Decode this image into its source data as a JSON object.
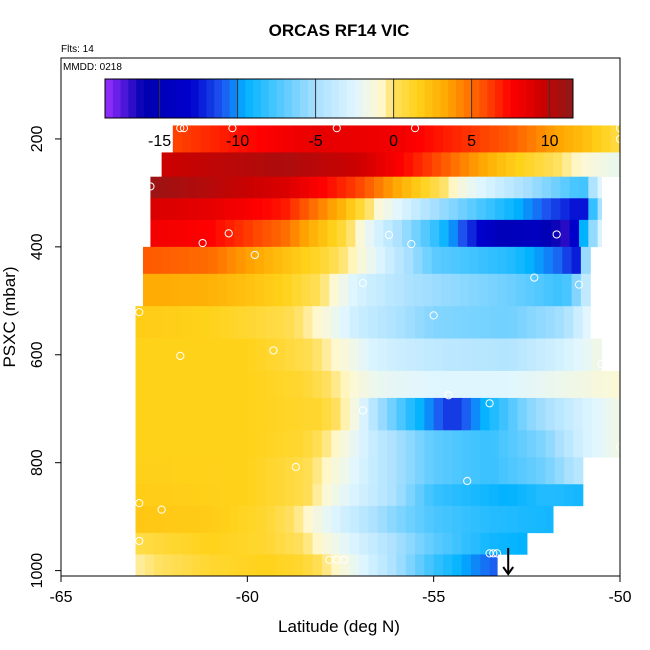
{
  "chart_data": {
    "type": "heatmap",
    "title": "ORCAS RF14 VIC",
    "flights_label": "Flts: 14",
    "date_label": "MMDD: 0218",
    "xlabel": "Latitude (deg N)",
    "ylabel": "PSXC (mbar)",
    "xlim": [
      -65,
      -50
    ],
    "ylim": [
      1010,
      50
    ],
    "x_ticks": [
      -65,
      -60,
      -55,
      -50
    ],
    "x_tick_labels": [
      "-65",
      "-60",
      "-55",
      "-50"
    ],
    "y_ticks": [
      200,
      400,
      600,
      800,
      1000
    ],
    "y_tick_labels": [
      "200",
      "400",
      "600",
      "800",
      "1000"
    ],
    "colorbar": {
      "range": [
        -18.5,
        11.5
      ],
      "ticks": [
        -15,
        -10,
        -5,
        0,
        5,
        10
      ],
      "tick_labels": [
        "-15",
        "-10",
        "-5",
        "0",
        "5",
        "10"
      ],
      "stops": [
        {
          "v": -18.5,
          "c": "#9b30ff"
        },
        {
          "v": -17.5,
          "c": "#5a1be0"
        },
        {
          "v": -16,
          "c": "#0000b0"
        },
        {
          "v": -13,
          "c": "#0000cd"
        },
        {
          "v": -11,
          "c": "#1e56f0"
        },
        {
          "v": -9.5,
          "c": "#00b2ff"
        },
        {
          "v": -7,
          "c": "#5ecbff"
        },
        {
          "v": -5,
          "c": "#a8e0ff"
        },
        {
          "v": -2.5,
          "c": "#e0f6ff"
        },
        {
          "v": -0.8,
          "c": "#fff8cf"
        },
        {
          "v": 0,
          "c": "#ffe060"
        },
        {
          "v": 1.5,
          "c": "#ffd21a"
        },
        {
          "v": 3.5,
          "c": "#ffa500"
        },
        {
          "v": 6,
          "c": "#ff4500"
        },
        {
          "v": 7.5,
          "c": "#ff0000"
        },
        {
          "v": 9.5,
          "c": "#cd0000"
        },
        {
          "v": 11.5,
          "c": "#8b1a1a"
        }
      ]
    },
    "layers": [
      {
        "p_top": 175,
        "p_bot": 225,
        "x_start": -62.0,
        "x_end": -50.0,
        "profile": [
          [
            -62,
            6
          ],
          [
            -60.5,
            7
          ],
          [
            -58,
            8.5
          ],
          [
            -56,
            8
          ],
          [
            -53,
            5.5
          ],
          [
            -51,
            2.5
          ],
          [
            -50,
            0.5
          ]
        ]
      },
      {
        "p_top": 225,
        "p_bot": 270,
        "x_start": -62.3,
        "x_end": -50.0,
        "profile": [
          [
            -62.3,
            9.5
          ],
          [
            -59,
            10.5
          ],
          [
            -57,
            9.5
          ],
          [
            -55,
            6
          ],
          [
            -53,
            2
          ],
          [
            -51,
            -1
          ],
          [
            -50,
            -2
          ]
        ]
      },
      {
        "p_top": 270,
        "p_bot": 310,
        "x_start": -62.6,
        "x_end": -50.5,
        "profile": [
          [
            -62.6,
            11
          ],
          [
            -61,
            10.2
          ],
          [
            -59,
            9
          ],
          [
            -57,
            6
          ],
          [
            -55.5,
            2
          ],
          [
            -54,
            -2
          ],
          [
            -52,
            -6
          ],
          [
            -51,
            -8
          ],
          [
            -50.5,
            -2
          ]
        ]
      },
      {
        "p_top": 310,
        "p_bot": 350,
        "x_start": -62.6,
        "x_end": -50.5,
        "profile": [
          [
            -62.6,
            9
          ],
          [
            -61,
            8.5
          ],
          [
            -59,
            7
          ],
          [
            -57.5,
            3
          ],
          [
            -56.5,
            -1
          ],
          [
            -55,
            -5
          ],
          [
            -53,
            -9
          ],
          [
            -51.5,
            -12
          ],
          [
            -51,
            -13
          ],
          [
            -50.5,
            -4
          ]
        ]
      },
      {
        "p_top": 350,
        "p_bot": 400,
        "x_start": -62.6,
        "x_end": -50.5,
        "profile": [
          [
            -62.6,
            8
          ],
          [
            -61,
            7.5
          ],
          [
            -59,
            5
          ],
          [
            -57.5,
            1
          ],
          [
            -56.5,
            -3
          ],
          [
            -55,
            -8
          ],
          [
            -54,
            -12
          ],
          [
            -53.2,
            -15
          ],
          [
            -52.2,
            -14.5
          ],
          [
            -51.5,
            -17
          ],
          [
            -51.2,
            -13
          ],
          [
            -50.5,
            -2
          ]
        ]
      },
      {
        "p_top": 400,
        "p_bot": 450,
        "x_start": -62.8,
        "x_end": -50.8,
        "profile": [
          [
            -62.8,
            5.5
          ],
          [
            -61,
            5
          ],
          [
            -59.5,
            3
          ],
          [
            -58,
            1
          ],
          [
            -57,
            -1
          ],
          [
            -56,
            -4
          ],
          [
            -55,
            -7
          ],
          [
            -53,
            -8.5
          ],
          [
            -51.5,
            -11
          ],
          [
            -51.2,
            -13
          ],
          [
            -50.8,
            -2
          ]
        ]
      },
      {
        "p_top": 450,
        "p_bot": 510,
        "x_start": -62.8,
        "x_end": -50.8,
        "profile": [
          [
            -62.8,
            3.2
          ],
          [
            -61,
            3
          ],
          [
            -59,
            1.5
          ],
          [
            -58,
            0
          ],
          [
            -57,
            -3
          ],
          [
            -55.5,
            -5
          ],
          [
            -53,
            -6.5
          ],
          [
            -51.5,
            -8
          ],
          [
            -51,
            -5
          ],
          [
            -50.8,
            -2
          ]
        ]
      },
      {
        "p_top": 510,
        "p_bot": 570,
        "x_start": -63.0,
        "x_end": -50.8,
        "profile": [
          [
            -63,
            1.8
          ],
          [
            -61,
            1.5
          ],
          [
            -59,
            0.5
          ],
          [
            -58,
            -1
          ],
          [
            -57,
            -3.5
          ],
          [
            -55,
            -6
          ],
          [
            -53,
            -6.5
          ],
          [
            -51.5,
            -5
          ],
          [
            -50.8,
            -2
          ]
        ]
      },
      {
        "p_top": 570,
        "p_bot": 630,
        "x_start": -63.0,
        "x_end": -50.5,
        "profile": [
          [
            -63,
            1.5
          ],
          [
            -60,
            1.5
          ],
          [
            -58.5,
            0.5
          ],
          [
            -57.5,
            -1
          ],
          [
            -56.5,
            -3
          ],
          [
            -55,
            -4
          ],
          [
            -53,
            -4.5
          ],
          [
            -51.5,
            -3
          ],
          [
            -50.5,
            -1.5
          ]
        ]
      },
      {
        "p_top": 630,
        "p_bot": 680,
        "x_start": -63.0,
        "x_end": -50.0,
        "profile": [
          [
            -63,
            1.5
          ],
          [
            -60,
            1.5
          ],
          [
            -58.5,
            1
          ],
          [
            -57.5,
            -0.5
          ],
          [
            -56.5,
            -2
          ],
          [
            -55,
            -2.5
          ],
          [
            -53,
            -2.5
          ],
          [
            -51,
            -1.5
          ],
          [
            -50,
            -1
          ]
        ]
      },
      {
        "p_top": 680,
        "p_bot": 740,
        "x_start": -63.0,
        "x_end": -50.0,
        "profile": [
          [
            -63,
            1.5
          ],
          [
            -60,
            1.5
          ],
          [
            -58,
            1
          ],
          [
            -57.2,
            -1
          ],
          [
            -56.5,
            -5
          ],
          [
            -55.5,
            -9
          ],
          [
            -54.5,
            -12
          ],
          [
            -53.5,
            -9
          ],
          [
            -52.5,
            -6
          ],
          [
            -51,
            -3
          ],
          [
            -50,
            -1.5
          ]
        ]
      },
      {
        "p_top": 740,
        "p_bot": 790,
        "x_start": -63.0,
        "x_end": -50.0,
        "profile": [
          [
            -63,
            1.5
          ],
          [
            -60,
            1.5
          ],
          [
            -58.5,
            1
          ],
          [
            -57.5,
            -1
          ],
          [
            -56.5,
            -4
          ],
          [
            -55,
            -7
          ],
          [
            -53.5,
            -8
          ],
          [
            -52,
            -6
          ],
          [
            -51,
            -3
          ],
          [
            -50,
            -1.5
          ]
        ]
      },
      {
        "p_top": 790,
        "p_bot": 840,
        "x_start": -63.0,
        "x_end": -51.0,
        "profile": [
          [
            -63,
            1.6
          ],
          [
            -60,
            1.5
          ],
          [
            -58.5,
            0.5
          ],
          [
            -57.5,
            -1.5
          ],
          [
            -56.5,
            -4
          ],
          [
            -55,
            -7
          ],
          [
            -53.5,
            -8
          ],
          [
            -52,
            -6.5
          ],
          [
            -51,
            -4
          ]
        ]
      },
      {
        "p_top": 840,
        "p_bot": 880,
        "x_start": -63.0,
        "x_end": -51.0,
        "profile": [
          [
            -63,
            1.8
          ],
          [
            -60,
            1.5
          ],
          [
            -58.5,
            0.5
          ],
          [
            -57.5,
            -2
          ],
          [
            -56,
            -5
          ],
          [
            -55,
            -8
          ],
          [
            -53,
            -9.5
          ],
          [
            -52,
            -8.5
          ],
          [
            -51,
            -9
          ]
        ]
      },
      {
        "p_top": 880,
        "p_bot": 930,
        "x_start": -63.0,
        "x_end": -51.8,
        "profile": [
          [
            -63,
            2
          ],
          [
            -61,
            1.8
          ],
          [
            -59.5,
            1
          ],
          [
            -58.5,
            -0.5
          ],
          [
            -57.5,
            -3
          ],
          [
            -56,
            -6
          ],
          [
            -55,
            -7.5
          ],
          [
            -53.5,
            -8.5
          ],
          [
            -51.8,
            -9
          ]
        ]
      },
      {
        "p_top": 930,
        "p_bot": 970,
        "x_start": -63.0,
        "x_end": -52.5,
        "profile": [
          [
            -63,
            0.5
          ],
          [
            -61,
            1.5
          ],
          [
            -59.5,
            1
          ],
          [
            -58.5,
            0
          ],
          [
            -57.5,
            -2
          ],
          [
            -56,
            -5
          ],
          [
            -55,
            -7
          ],
          [
            -53.5,
            -9
          ],
          [
            -52.5,
            -9.5
          ]
        ]
      },
      {
        "p_top": 970,
        "p_bot": 1010,
        "x_start": -63.0,
        "x_end": -53.3,
        "profile": [
          [
            -63,
            -0.5
          ],
          [
            -61,
            1
          ],
          [
            -59.5,
            1.5
          ],
          [
            -58.5,
            1
          ],
          [
            -57.5,
            -1
          ],
          [
            -56,
            -5
          ],
          [
            -55,
            -8
          ],
          [
            -54,
            -10
          ],
          [
            -53.3,
            -11
          ]
        ]
      }
    ],
    "points": [
      [
        -61.8,
        180
      ],
      [
        -61.7,
        180
      ],
      [
        -60.4,
        180
      ],
      [
        -57.6,
        180
      ],
      [
        -55.5,
        180
      ],
      [
        -50.0,
        180
      ],
      [
        -50.0,
        200
      ],
      [
        -62.6,
        288
      ],
      [
        -50.0,
        290
      ],
      [
        -60.5,
        375
      ],
      [
        -61.2,
        393
      ],
      [
        -56.2,
        378
      ],
      [
        -55.6,
        395
      ],
      [
        -51.7,
        377
      ],
      [
        -59.8,
        415
      ],
      [
        -52.3,
        457
      ],
      [
        -56.9,
        467
      ],
      [
        -51.1,
        470
      ],
      [
        -55.0,
        527
      ],
      [
        -62.9,
        521
      ],
      [
        -59.3,
        592
      ],
      [
        -61.8,
        602
      ],
      [
        -50.5,
        617
      ],
      [
        -54.6,
        675
      ],
      [
        -53.5,
        690
      ],
      [
        -56.9,
        703
      ],
      [
        -50.0,
        771
      ],
      [
        -58.7,
        808
      ],
      [
        -54.1,
        834
      ],
      [
        -62.9,
        875
      ],
      [
        -62.3,
        887
      ],
      [
        -62.9,
        945
      ],
      [
        -57.8,
        980
      ],
      [
        -57.6,
        980
      ],
      [
        -57.4,
        980
      ],
      [
        -53.5,
        968
      ],
      [
        -53.4,
        968
      ],
      [
        -53.3,
        968
      ]
    ],
    "marker": {
      "x": -53.0,
      "y_from": 958,
      "y_to": 1010,
      "type": "down-arrow"
    }
  }
}
